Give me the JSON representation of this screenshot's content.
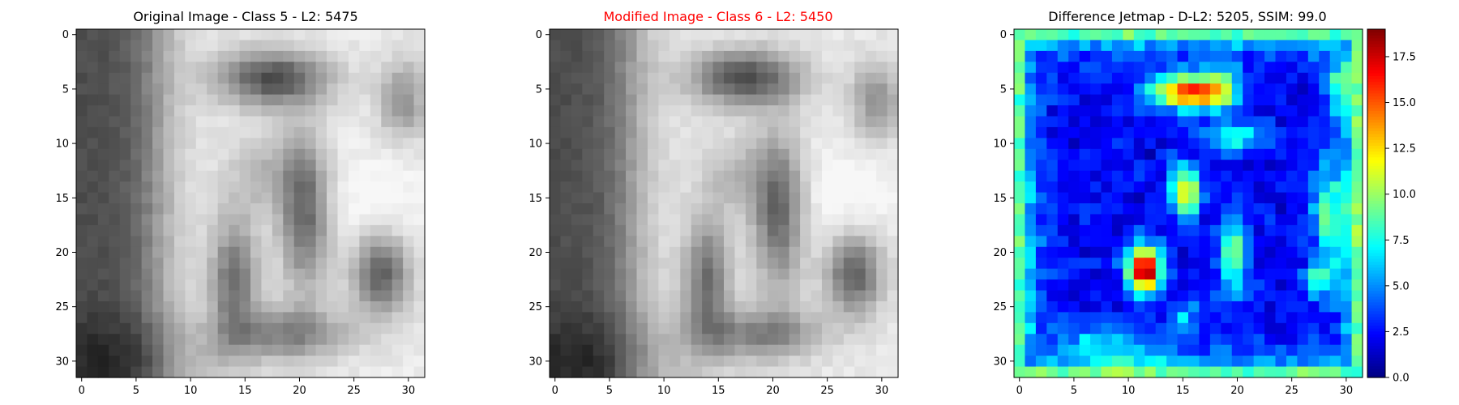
{
  "chart_data": [
    {
      "type": "heatmap",
      "title": "Original Image - Class 5 - L2: 5475",
      "title_color": "#000000",
      "colormap": "gray",
      "grid_size": [
        32,
        32
      ],
      "xlim": [
        -0.5,
        31.5
      ],
      "ylim": [
        31.5,
        -0.5
      ],
      "xticks": [
        0,
        5,
        10,
        15,
        20,
        25,
        30
      ],
      "yticks": [
        0,
        5,
        10,
        15,
        20,
        25,
        30
      ],
      "grid": false
    },
    {
      "type": "heatmap",
      "title": "Modified Image - Class 6 - L2: 5450",
      "title_color": "#ff0000",
      "colormap": "gray",
      "grid_size": [
        32,
        32
      ],
      "xlim": [
        -0.5,
        31.5
      ],
      "ylim": [
        31.5,
        -0.5
      ],
      "xticks": [
        0,
        5,
        10,
        15,
        20,
        25,
        30
      ],
      "yticks": [
        0,
        5,
        10,
        15,
        20,
        25,
        30
      ],
      "grid": false
    },
    {
      "type": "heatmap",
      "title": "Difference Jetmap - D-L2: 5205, SSIM: 99.0",
      "title_color": "#000000",
      "colormap": "jet",
      "grid_size": [
        32,
        32
      ],
      "xlim": [
        -0.5,
        31.5
      ],
      "ylim": [
        31.5,
        -0.5
      ],
      "xticks": [
        0,
        5,
        10,
        15,
        20,
        25,
        30
      ],
      "yticks": [
        0,
        5,
        10,
        15,
        20,
        25,
        30
      ],
      "grid": false,
      "colorbar": {
        "range": [
          0,
          19
        ],
        "ticks": [
          0.0,
          2.5,
          5.0,
          7.5,
          10.0,
          12.5,
          15.0,
          17.5
        ],
        "tick_labels": [
          "0.0",
          "2.5",
          "5.0",
          "7.5",
          "10.0",
          "12.5",
          "15.0",
          "17.5"
        ]
      }
    }
  ]
}
